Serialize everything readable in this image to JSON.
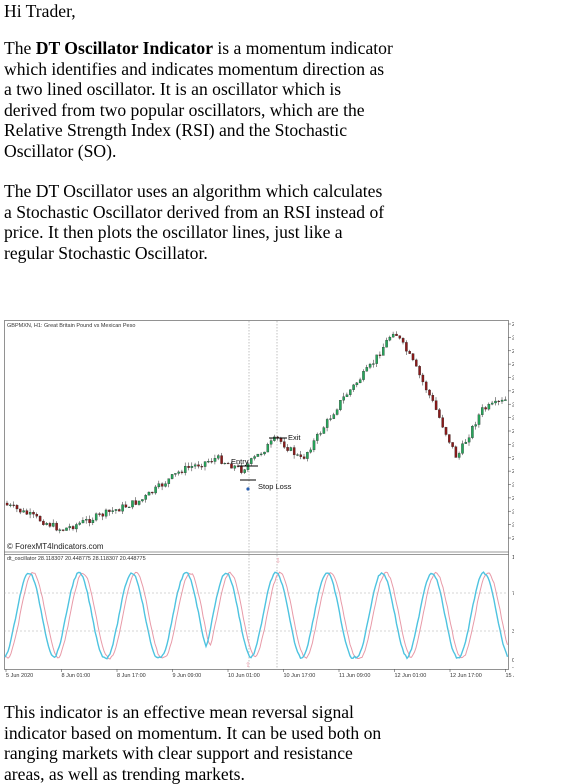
{
  "article": {
    "greeting": "Hi Trader,",
    "para1_pre": "The ",
    "para1_bold": "DT Oscillator Indicator",
    "para1_post": " is a momentum indicator which identifies and indicates momentum direction as a two lined oscillator. It is an oscillator which is derived from two popular oscillators, which are the Relative Strength Index (RSI) and the Stochastic Oscillator (SO).",
    "para2": "The DT Oscillator uses an algorithm which calculates a Stochastic Oscillator derived from an RSI instead of price. It then plots the oscillator lines, just like a regular Stochastic Oscillator.",
    "para3": "This indicator is an effective mean reversal signal indicator based on momentum. It can be used both on ranging markets with clear support and resistance areas, as well as trending markets."
  },
  "chart_data": {
    "type": "candlestick",
    "title": "GBPMXN, H1:  Great Britain Pound vs Mexican Peso",
    "watermark": "© ForexMT4Indicators.com",
    "price_axis_ticks": [
      "28.83865",
      "28.74090",
      "28.64315",
      "28.54540",
      "28.44765",
      "28.34990",
      "28.25215",
      "28.15440",
      "28.05665",
      "27.95890",
      "27.86115",
      "27.76340",
      "27.66565",
      "27.56790",
      "27.47015",
      "27.37240",
      "27.27465"
    ],
    "price_range": [
      27.25,
      28.85
    ],
    "annotations": {
      "entry": "Entry",
      "exit": "Exit",
      "stop_loss": "Stop Loss"
    },
    "oscillator": {
      "label": "dt_oscillator 28.118307 20.448775 28.118307 20.448775",
      "axis_ticks": [
        "110.459743",
        "70.000000",
        "30.000000",
        "0.000000",
        "-10.076344"
      ],
      "range": [
        -10.076344,
        110.459743
      ]
    },
    "x_axis_ticks": [
      "5 Jun 2020",
      "8 Jun 01:00",
      "8 Jun 17:00",
      "9 Jun 09:00",
      "10 Jun 01:00",
      "10 Jun 17:00",
      "11 Jun 09:00",
      "12 Jun 01:00",
      "12 Jun 17:00",
      "15 Jun 09:00"
    ],
    "colors": {
      "bull": "#26a65b",
      "bear": "#8b1a1a",
      "line_main": "#4ec3e0",
      "line_signal": "#e89aa8"
    }
  }
}
